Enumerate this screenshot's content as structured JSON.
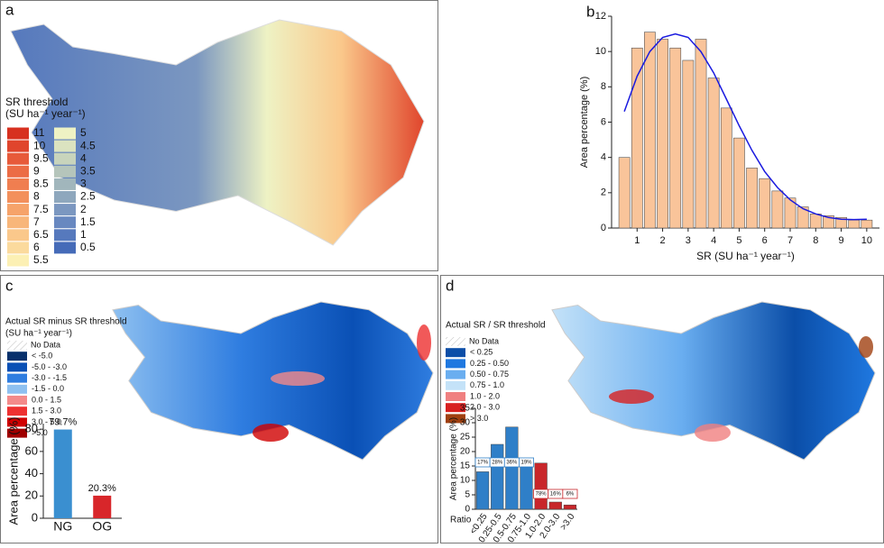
{
  "panel_labels": [
    "a",
    "b",
    "c",
    "d"
  ],
  "map_a": {
    "title_lines": [
      "SR threshold",
      "(SU ha⁻¹ year⁻¹)"
    ],
    "legend": [
      {
        "label": "11",
        "color": "#d7301f"
      },
      {
        "label": "10",
        "color": "#e0452c"
      },
      {
        "label": "9.5",
        "color": "#e75a3a"
      },
      {
        "label": "9",
        "color": "#ec6c45"
      },
      {
        "label": "8.5",
        "color": "#f07e50"
      },
      {
        "label": "8",
        "color": "#f3905c"
      },
      {
        "label": "7.5",
        "color": "#f6a36a"
      },
      {
        "label": "7",
        "color": "#f8b67a"
      },
      {
        "label": "6.5",
        "color": "#fac88b"
      },
      {
        "label": "6",
        "color": "#fbda9d"
      },
      {
        "label": "5.5",
        "color": "#fcf0b4"
      },
      {
        "label": "5",
        "color": "#eef2c4"
      },
      {
        "label": "4.5",
        "color": "#dbe3c0"
      },
      {
        "label": "4",
        "color": "#c8d4bc"
      },
      {
        "label": "3.5",
        "color": "#b5c5bb"
      },
      {
        "label": "3",
        "color": "#a1b6bc"
      },
      {
        "label": "2.5",
        "color": "#8ea7bd"
      },
      {
        "label": "2",
        "color": "#7b97c0"
      },
      {
        "label": "1.5",
        "color": "#6888c0"
      },
      {
        "label": "1",
        "color": "#5679bd"
      },
      {
        "label": "0.5",
        "color": "#456bb8"
      }
    ]
  },
  "map_c": {
    "title_lines": [
      "Actual SR minus SR threshold",
      "(SU ha⁻¹ year⁻¹)"
    ],
    "no_data": "No Data",
    "legend": [
      {
        "label": "< -5.0",
        "color": "#08306b"
      },
      {
        "label": "-5.0 - -3.0",
        "color": "#0a50b5"
      },
      {
        "label": "-3.0 - -1.5",
        "color": "#2f7de0"
      },
      {
        "label": "-1.5 - 0.0",
        "color": "#8ec0f0"
      },
      {
        "label": "0.0 - 1.5",
        "color": "#f48a8a"
      },
      {
        "label": "1.5 - 3.0",
        "color": "#ee3030"
      },
      {
        "label": "3.0 - 5.0",
        "color": "#d00000"
      },
      {
        "label": ">5.0",
        "color": "#a00000"
      }
    ]
  },
  "map_d": {
    "title_lines": [
      "Actual SR / SR threshold"
    ],
    "no_data": "No Data",
    "legend": [
      {
        "label": "< 0.25",
        "color": "#0b4ea8"
      },
      {
        "label": "0.25 - 0.50",
        "color": "#1f78e0"
      },
      {
        "label": "0.50 - 0.75",
        "color": "#6aaef0"
      },
      {
        "label": "0.75 - 1.0",
        "color": "#c4e2f8"
      },
      {
        "label": "1.0 - 2.0",
        "color": "#f08080"
      },
      {
        "label": "2.0 - 3.0",
        "color": "#d82020"
      },
      {
        "label": "> 3.0",
        "color": "#a04010"
      }
    ]
  },
  "chart_data": [
    {
      "type": "histogram",
      "xlabel": "SR (SU ha⁻¹ year⁻¹)",
      "ylabel": "Area percentage (%)",
      "bins": [
        0.25,
        0.75,
        1.25,
        1.75,
        2.25,
        2.75,
        3.25,
        3.75,
        4.25,
        4.75,
        5.25,
        5.75,
        6.25,
        6.75,
        7.25,
        7.75,
        8.25,
        8.75,
        9.25,
        9.75,
        10.25
      ],
      "values": [
        4.0,
        10.2,
        11.1,
        10.7,
        10.2,
        9.5,
        10.7,
        8.5,
        6.8,
        5.1,
        3.4,
        2.8,
        2.1,
        1.7,
        1.2,
        0.8,
        0.7,
        0.6,
        0.45,
        0.45
      ],
      "color": "#f9c49a",
      "fit": {
        "x": [
          0.5,
          1,
          1.5,
          2,
          2.5,
          3,
          3.5,
          4,
          4.5,
          5,
          5.5,
          6,
          6.5,
          7,
          7.5,
          8,
          8.5,
          9,
          9.5,
          10
        ],
        "values": [
          6.6,
          8.6,
          10.0,
          10.8,
          11.0,
          10.8,
          10.0,
          8.8,
          7.3,
          5.8,
          4.4,
          3.2,
          2.3,
          1.6,
          1.1,
          0.8,
          0.6,
          0.5,
          0.48,
          0.5
        ],
        "color": "#1a1adf"
      },
      "xlim": [
        0,
        10.5
      ],
      "xticks": [
        1,
        2,
        3,
        4,
        5,
        6,
        7,
        8,
        9,
        10
      ],
      "ylim": [
        0,
        12
      ],
      "yticks": [
        0,
        2,
        4,
        6,
        8,
        10,
        12
      ]
    },
    {
      "type": "bar",
      "ylabel": "Area percentage (%)",
      "categories": [
        "NG",
        "OG"
      ],
      "values": [
        79.7,
        20.3
      ],
      "value_labels": [
        "79.7%",
        "20.3%"
      ],
      "colors": [
        "#3a8fd0",
        "#d8262a"
      ],
      "ylim": [
        0,
        85
      ],
      "yticks": [
        0,
        20,
        40,
        60,
        80
      ]
    },
    {
      "type": "bar",
      "ylabel": "Area percentage (%)",
      "xlabel": "Ratio",
      "categories": [
        "<0.25",
        "0.25-0.5",
        "0.5-0.75",
        "0.75-1.0",
        "1.0-2.0",
        "2.0-3.0",
        ">3.0"
      ],
      "values": [
        13,
        22.5,
        28.5,
        15,
        16,
        2.5,
        1.5
      ],
      "colors": [
        "#2f7fc8",
        "#2f7fc8",
        "#2f7fc8",
        "#2f7fc8",
        "#c8262a",
        "#c8262a",
        "#c8262a"
      ],
      "annotations": [
        "17%",
        "28%",
        "36%",
        "19%",
        "78%",
        "16%",
        "6%"
      ],
      "ylim": [
        0,
        35
      ],
      "yticks": [
        0,
        5,
        10,
        15,
        20,
        25,
        30,
        35
      ]
    }
  ]
}
